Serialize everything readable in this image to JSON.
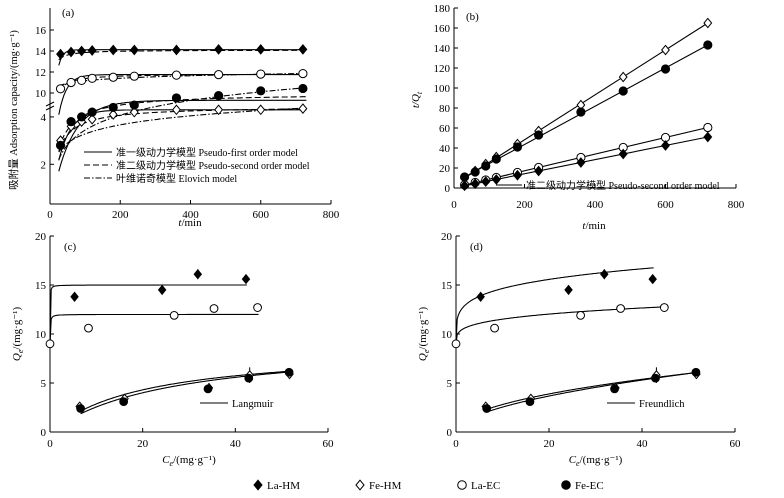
{
  "chart_data": [
    {
      "panel": "(a)",
      "type": "line",
      "xlabel": "t/min",
      "ylabel": "吸附量 Adsorption capacity/(mg·g⁻¹)",
      "xlim": [
        0,
        800
      ],
      "ylim_lower": [
        1,
        6
      ],
      "ylim_upper": [
        9.5,
        16
      ],
      "axis_break": true,
      "xticks": [
        "0",
        "200",
        "400",
        "600",
        "800"
      ],
      "yticks": [
        "2",
        "4",
        "10",
        "12",
        "14",
        "16"
      ],
      "legend": {
        "placement": "lower-center",
        "entries": [
          {
            "style": "solid",
            "label": "准一级动力学模型 Pseudo-first order model"
          },
          {
            "style": "dashed",
            "label": "准二级动力学模型 Pseudo-second order model"
          },
          {
            "style": "dashdot",
            "label": "叶维诺奇模型 Elovich model"
          }
        ]
      },
      "series": [
        {
          "name": "La-HM",
          "marker": "filled-diamond",
          "x": [
            30,
            60,
            90,
            120,
            180,
            240,
            360,
            480,
            600,
            720
          ],
          "y": [
            13.7,
            13.9,
            14.0,
            14.05,
            14.1,
            14.1,
            14.1,
            14.15,
            14.15,
            14.15
          ]
        },
        {
          "name": "La-EC",
          "marker": "open-circle",
          "x": [
            30,
            60,
            90,
            120,
            180,
            240,
            360,
            480,
            600,
            720
          ],
          "y": [
            10.4,
            11.0,
            11.2,
            11.4,
            11.5,
            11.6,
            11.7,
            11.75,
            11.8,
            11.85
          ]
        },
        {
          "name": "Fe-HM",
          "marker": "open-diamond",
          "x": [
            30,
            60,
            90,
            120,
            180,
            240,
            360,
            480,
            600,
            720
          ],
          "y": [
            3.0,
            3.6,
            3.8,
            3.9,
            4.1,
            4.2,
            4.3,
            4.3,
            4.3,
            4.35
          ]
        },
        {
          "name": "Fe-EC",
          "marker": "filled-circle",
          "x": [
            30,
            60,
            90,
            120,
            180,
            240,
            360,
            480,
            600,
            720
          ],
          "y": [
            2.8,
            3.8,
            4.0,
            4.2,
            4.4,
            4.5,
            4.8,
            4.9,
            5.1,
            5.2
          ]
        }
      ]
    },
    {
      "panel": "(b)",
      "type": "line",
      "xlabel": "t/min",
      "ylabel": "t/Qt",
      "xlim": [
        0,
        800
      ],
      "ylim": [
        0,
        180
      ],
      "xticks": [
        "0",
        "200",
        "400",
        "600",
        "800"
      ],
      "yticks": [
        "0",
        "20",
        "40",
        "60",
        "80",
        "100",
        "120",
        "140",
        "160",
        "180"
      ],
      "legend": {
        "placement": "bottom-right",
        "entries": [
          {
            "style": "solid",
            "label": "准二级动力学模型 Pseudo-second order model"
          }
        ]
      },
      "series": [
        {
          "name": "Fe-HM",
          "marker": "open-diamond",
          "x": [
            30,
            60,
            90,
            120,
            180,
            240,
            360,
            480,
            600,
            720
          ],
          "y": [
            10,
            17,
            24,
            31,
            44,
            57,
            83,
            111,
            138,
            165
          ]
        },
        {
          "name": "Fe-EC",
          "marker": "filled-circle",
          "x": [
            30,
            60,
            90,
            120,
            180,
            240,
            360,
            480,
            600,
            720
          ],
          "y": [
            11,
            16,
            22,
            29,
            41,
            53,
            76,
            97,
            119,
            143
          ]
        },
        {
          "name": "La-EC",
          "marker": "open-circle",
          "x": [
            30,
            60,
            90,
            120,
            180,
            240,
            360,
            480,
            600,
            720
          ],
          "y": [
            3,
            5.5,
            8,
            10.5,
            15.5,
            20.5,
            30.5,
            40.5,
            50.5,
            60.5
          ]
        },
        {
          "name": "La-HM",
          "marker": "filled-diamond",
          "x": [
            30,
            60,
            90,
            120,
            180,
            240,
            360,
            480,
            600,
            720
          ],
          "y": [
            2.2,
            4.3,
            6.4,
            8.5,
            12.8,
            17,
            25.5,
            34,
            42.5,
            51
          ]
        }
      ]
    },
    {
      "panel": "(c)",
      "type": "scatter",
      "xlabel": "Ce/(mg·g⁻¹)",
      "ylabel": "Qe/(mg·g⁻¹)",
      "xlim": [
        0,
        60
      ],
      "ylim": [
        0,
        20
      ],
      "xticks": [
        "0",
        "20",
        "40",
        "60"
      ],
      "yticks": [
        "0",
        "5",
        "10",
        "15",
        "20"
      ],
      "legend": {
        "placement": "bottom-right",
        "entries": [
          {
            "style": "solid",
            "label": "Langmuir"
          }
        ]
      },
      "series": [
        {
          "name": "La-HM",
          "marker": "filled-diamond",
          "x": [
            5.3,
            24.2,
            31.9,
            42.3
          ],
          "y": [
            13.8,
            14.5,
            16.1,
            15.6
          ],
          "err": [
            0,
            0.4,
            0.5,
            0.3
          ]
        },
        {
          "name": "La-EC",
          "marker": "open-circle",
          "x": [
            0,
            8.3,
            26.8,
            35.4,
            44.8
          ],
          "y": [
            9.0,
            10.6,
            11.9,
            12.6,
            12.7
          ]
        },
        {
          "name": "Fe-HM",
          "marker": "open-diamond",
          "x": [
            6.4,
            16.1,
            34.3,
            43.1,
            51.7
          ],
          "y": [
            2.6,
            3.4,
            4.5,
            5.8,
            5.9
          ]
        },
        {
          "name": "Fe-EC",
          "marker": "filled-circle",
          "x": [
            6.6,
            15.9,
            34.1,
            42.9,
            51.6
          ],
          "y": [
            2.4,
            3.1,
            4.4,
            5.5,
            6.1
          ]
        }
      ]
    },
    {
      "panel": "(d)",
      "type": "scatter",
      "xlabel": "Ce/(mg·g⁻¹)",
      "ylabel": "Qe/(mg·g⁻¹)",
      "xlim": [
        0,
        60
      ],
      "ylim": [
        0,
        20
      ],
      "xticks": [
        "0",
        "20",
        "40",
        "60"
      ],
      "yticks": [
        "0",
        "5",
        "10",
        "15",
        "20"
      ],
      "legend": {
        "placement": "bottom-right",
        "entries": [
          {
            "style": "solid",
            "label": "Freundlich"
          }
        ]
      },
      "series": [
        {
          "name": "La-HM",
          "marker": "filled-diamond",
          "x": [
            5.3,
            24.2,
            31.9,
            42.3
          ],
          "y": [
            13.8,
            14.5,
            16.1,
            15.6
          ],
          "err": [
            0,
            0.4,
            0.5,
            0.3
          ]
        },
        {
          "name": "La-EC",
          "marker": "open-circle",
          "x": [
            0,
            8.3,
            26.8,
            35.4,
            44.8
          ],
          "y": [
            9.0,
            10.6,
            11.9,
            12.6,
            12.7
          ]
        },
        {
          "name": "Fe-HM",
          "marker": "open-diamond",
          "x": [
            6.4,
            16.1,
            34.3,
            43.1,
            51.7
          ],
          "y": [
            2.6,
            3.4,
            4.5,
            5.8,
            5.9
          ]
        },
        {
          "name": "Fe-EC",
          "marker": "filled-circle",
          "x": [
            6.6,
            15.9,
            34.1,
            42.9,
            51.6
          ],
          "y": [
            2.4,
            3.1,
            4.4,
            5.5,
            6.1
          ]
        }
      ]
    }
  ],
  "figure_legend": [
    {
      "marker": "filled-diamond",
      "label": "La-HM"
    },
    {
      "marker": "open-diamond",
      "label": "Fe-HM"
    },
    {
      "marker": "open-circle",
      "label": "La-EC"
    },
    {
      "marker": "filled-circle",
      "label": "Fe-EC"
    }
  ]
}
